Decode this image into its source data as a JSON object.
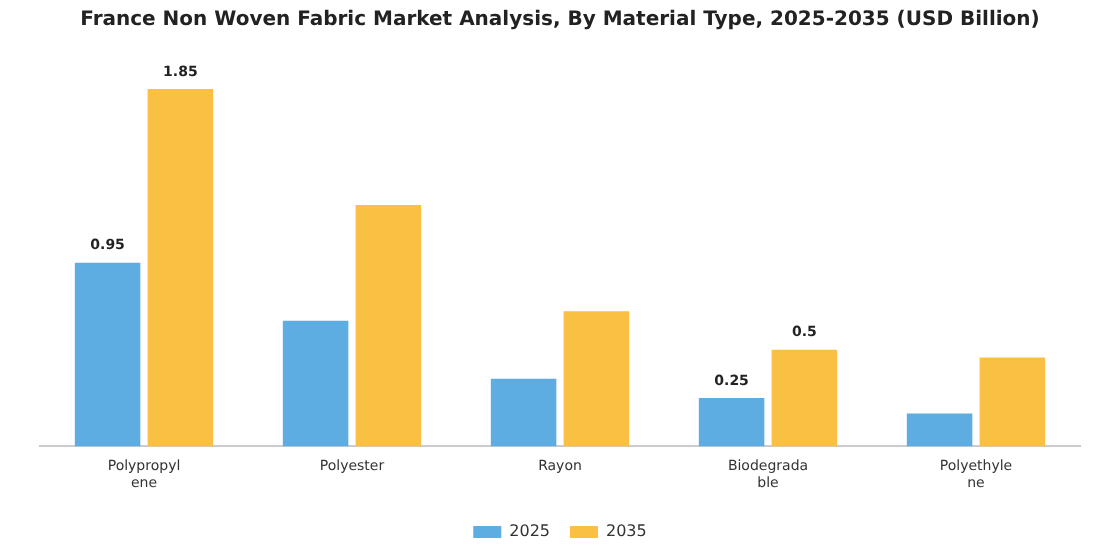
{
  "chart_data": {
    "type": "bar",
    "title": "France Non Woven Fabric Market Analysis, By Material Type, 2025-2035 (USD Billion)",
    "categories": [
      "Polypropylene",
      "Polyester",
      "Rayon",
      "Biodegradable",
      "Polyethylene"
    ],
    "series": [
      {
        "name": "2025",
        "color": "#5dade2",
        "values": [
          0.95,
          0.65,
          0.35,
          0.25,
          0.17
        ],
        "value_labels": [
          "0.95",
          null,
          null,
          "0.25",
          null
        ]
      },
      {
        "name": "2035",
        "color": "#f9c044",
        "values": [
          1.85,
          1.25,
          0.7,
          0.5,
          0.46
        ],
        "value_labels": [
          "1.85",
          null,
          null,
          "0.5",
          null
        ]
      }
    ],
    "legend": "bottom",
    "grid": false
  }
}
